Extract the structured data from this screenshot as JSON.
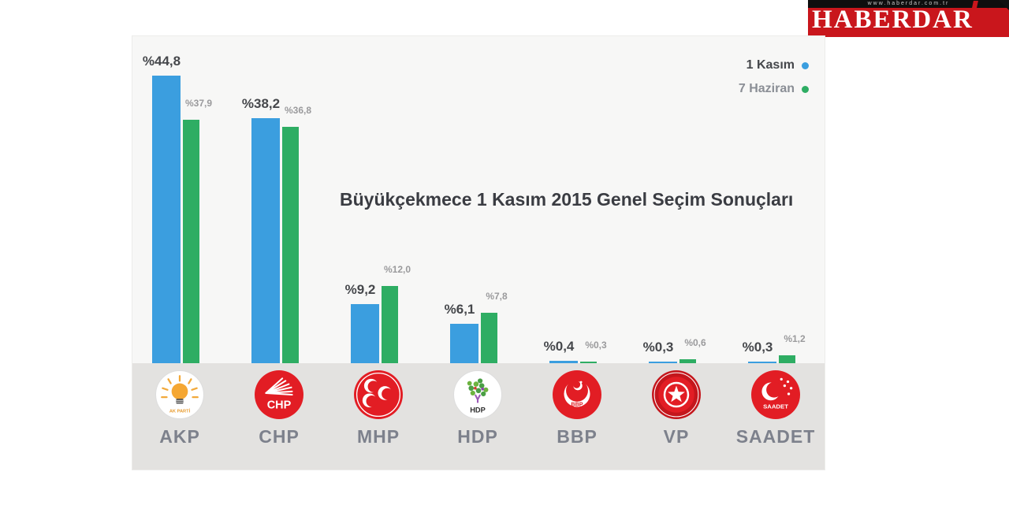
{
  "site_banner": {
    "url_text": "www.haberdar.com.tr",
    "brand": "HABERDAR",
    "bg_color": "#c9161c"
  },
  "chart_data": {
    "type": "bar",
    "title": "Büyükçekmece 1 Kasım 2015 Genel Seçim Sonuçları",
    "categories": [
      "AKP",
      "CHP",
      "MHP",
      "HDP",
      "BBP",
      "VP",
      "SAADET"
    ],
    "series": [
      {
        "name": "1 Kasım",
        "color": "#3b9edf",
        "values": [
          44.8,
          38.2,
          9.2,
          6.1,
          0.4,
          0.3,
          0.3
        ],
        "labels": [
          "%44,8",
          "%38,2",
          "%9,2",
          "%6,1",
          "%0,4",
          "%0,3",
          "%0,3"
        ]
      },
      {
        "name": "7 Haziran",
        "color": "#2ead63",
        "values": [
          37.9,
          36.8,
          12.0,
          7.8,
          0.3,
          0.6,
          1.2
        ],
        "labels": [
          "%37,9",
          "%36,8",
          "%12,0",
          "%7,8",
          "%0,3",
          "%0,6",
          "%1,2"
        ]
      }
    ],
    "value_prefix": "%",
    "decimal_separator": ",",
    "legend_position": "top-right",
    "axes_visible": false,
    "grid": false,
    "ylim": [
      0,
      45
    ]
  },
  "parties": [
    {
      "id": "akp",
      "name": "AKP",
      "logo_text": "AK PARTİ",
      "logo_icon": "akp-lightbulb-logo"
    },
    {
      "id": "chp",
      "name": "CHP",
      "logo_text": "CHP",
      "logo_icon": "chp-six-arrows-logo"
    },
    {
      "id": "mhp",
      "name": "MHP",
      "logo_text": "",
      "logo_icon": "mhp-three-crescents-logo"
    },
    {
      "id": "hdp",
      "name": "HDP",
      "logo_text": "HDP",
      "logo_icon": "hdp-tree-logo"
    },
    {
      "id": "bbp",
      "name": "BBP",
      "logo_text": "BBP",
      "logo_icon": "bbp-crescent-logo"
    },
    {
      "id": "vp",
      "name": "VP",
      "logo_text": "",
      "logo_icon": "vp-star-logo"
    },
    {
      "id": "saadet",
      "name": "SAADET",
      "logo_text": "SAADET",
      "logo_icon": "saadet-crescent-stars-logo"
    }
  ],
  "colors": {
    "panel_bg": "#f7f7f6",
    "footer_band": "#e3e2e0",
    "party_red": "#e21d24",
    "value_label_main": "#45474b",
    "value_label_sub": "#9a9a9c",
    "party_name": "#7d818c"
  }
}
